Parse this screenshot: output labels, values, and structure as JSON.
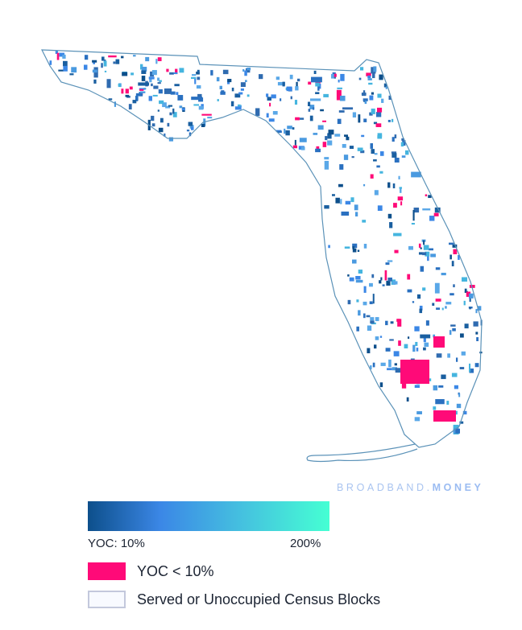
{
  "map": {
    "title_region": "Florida",
    "colors": {
      "low": "#0d4f8b",
      "mid": "#3b87e6",
      "high": "#45ffd3",
      "below_threshold": "#ff0a78",
      "served": "#f8faff",
      "outline": "#5b92b8"
    }
  },
  "watermark": {
    "brand": "BROADBAND.",
    "brand_bold": "MONEY"
  },
  "legend": {
    "scale_min_label": "YOC: 10%",
    "scale_max_label": "200%",
    "below_label": "YOC < 10%",
    "served_label": "Served or Unoccupied Census Blocks"
  }
}
